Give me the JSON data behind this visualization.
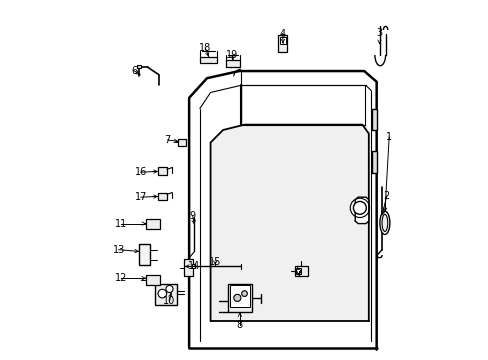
{
  "bg_color": "#ffffff",
  "line_color": "#000000",
  "fig_width": 4.89,
  "fig_height": 3.6,
  "dpi": 100,
  "label_arrow_map": {
    "1": [
      0.905,
      0.38,
      0.893,
      0.59
    ],
    "2": [
      0.898,
      0.545,
      0.885,
      0.6
    ],
    "3": [
      0.878,
      0.088,
      0.878,
      0.12
    ],
    "4": [
      0.607,
      0.09,
      0.608,
      0.118
    ],
    "5": [
      0.652,
      0.755,
      0.652,
      0.768
    ],
    "6": [
      0.192,
      0.195,
      0.208,
      0.205
    ],
    "7": [
      0.285,
      0.388,
      0.315,
      0.392
    ],
    "8": [
      0.487,
      0.905,
      0.487,
      0.87
    ],
    "9": [
      0.355,
      0.6,
      0.36,
      0.625
    ],
    "10": [
      0.29,
      0.84,
      0.295,
      0.815
    ],
    "11": [
      0.155,
      0.622,
      0.225,
      0.622
    ],
    "12": [
      0.155,
      0.775,
      0.225,
      0.775
    ],
    "13": [
      0.148,
      0.695,
      0.205,
      0.7
    ],
    "14": [
      0.36,
      0.742,
      0.333,
      0.742
    ],
    "15": [
      0.418,
      0.73,
      0.418,
      0.738
    ],
    "16": [
      0.21,
      0.478,
      0.258,
      0.476
    ],
    "17": [
      0.21,
      0.548,
      0.258,
      0.546
    ],
    "18": [
      0.39,
      0.13,
      0.4,
      0.155
    ],
    "19": [
      0.466,
      0.15,
      0.468,
      0.165
    ]
  }
}
